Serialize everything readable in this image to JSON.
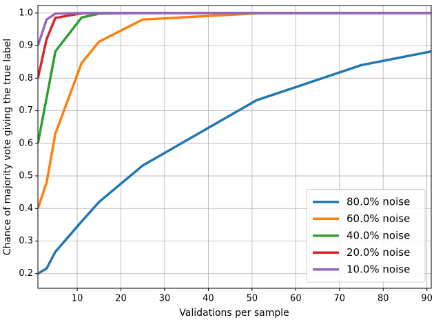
{
  "chart_data": {
    "type": "line",
    "x_label": "Validations per sample",
    "y_label": "Chance of majority vote giving the true label",
    "x": [
      1,
      3,
      5,
      11,
      15,
      25,
      51,
      75,
      91
    ],
    "series": [
      {
        "name": "80.0% noise",
        "color": "#1f77b4",
        "values": [
          0.2,
          0.216,
          0.267,
          0.36,
          0.42,
          0.532,
          0.732,
          0.84,
          0.882
        ]
      },
      {
        "name": "60.0% noise",
        "color": "#ff7f0e",
        "values": [
          0.4,
          0.48,
          0.63,
          0.846,
          0.912,
          0.98,
          0.999,
          1.0,
          1.0
        ]
      },
      {
        "name": "40.0% noise",
        "color": "#2ca02c",
        "values": [
          0.6,
          0.74,
          0.882,
          0.986,
          0.998,
          1.0,
          1.0,
          1.0,
          1.0
        ]
      },
      {
        "name": "20.0% noise",
        "color": "#d62728",
        "values": [
          0.8,
          0.92,
          0.985,
          0.999,
          1.0,
          1.0,
          1.0,
          1.0,
          1.0
        ]
      },
      {
        "name": "10.0% noise",
        "color": "#9467bd",
        "values": [
          0.9,
          0.98,
          0.998,
          1.0,
          1.0,
          1.0,
          1.0,
          1.0,
          1.0
        ]
      }
    ],
    "xlim": [
      1,
      91
    ],
    "ylim": [
      0.155,
      1.023
    ],
    "xticks": [
      10,
      20,
      30,
      40,
      50,
      60,
      70,
      80,
      90
    ],
    "yticks": [
      0.2,
      0.3,
      0.4,
      0.5,
      0.6,
      0.7,
      0.8,
      0.9,
      {
        "value": 1,
        "label": "1.0"
      }
    ],
    "grid": true,
    "legend": "lower right"
  }
}
